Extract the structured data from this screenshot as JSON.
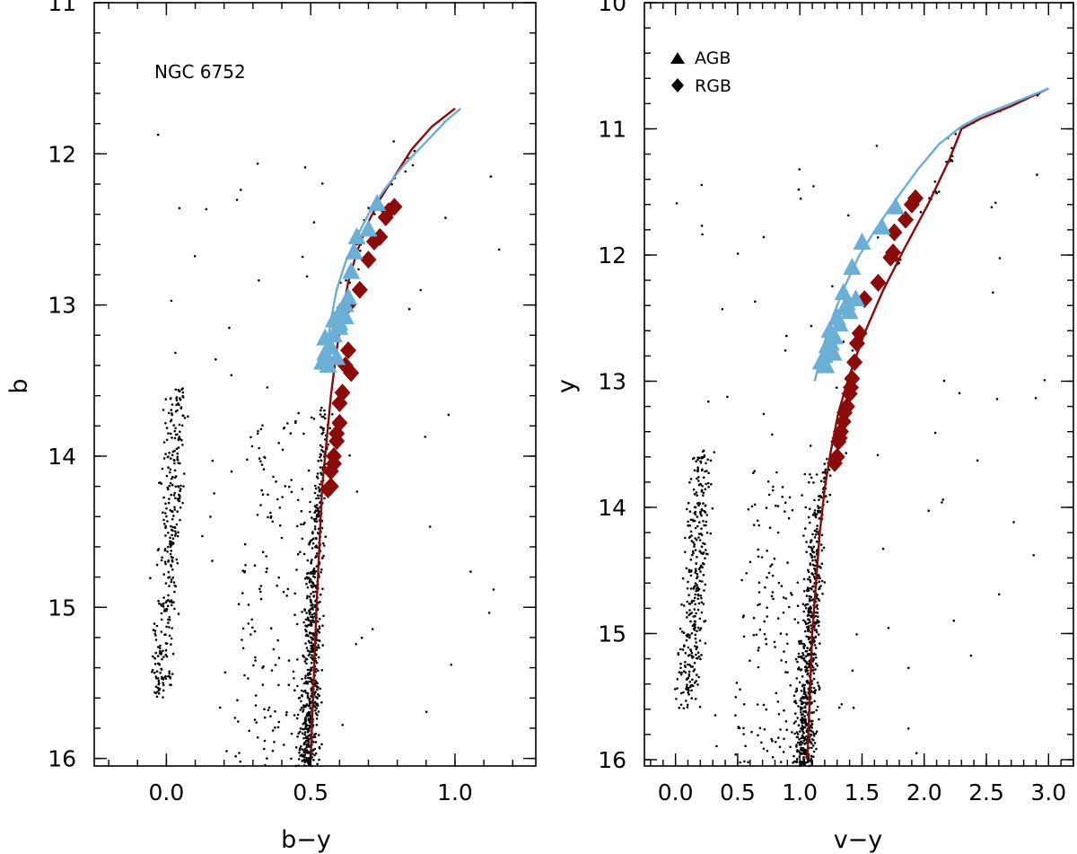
{
  "chart_data": [
    {
      "type": "scatter",
      "panel": "left",
      "xlabel": "b−y",
      "ylabel": "b",
      "xlim": [
        -0.25,
        1.28
      ],
      "ylim": [
        16.05,
        11.0
      ],
      "y_inverted": true,
      "xticks": [
        0.0,
        0.5,
        1.0
      ],
      "xtick_labels": [
        "0.0",
        "0.5",
        "1.0"
      ],
      "yticks": [
        11,
        12,
        13,
        14,
        15,
        16
      ],
      "ytick_labels": [
        "11",
        "12",
        "13",
        "14",
        "15",
        "16"
      ],
      "annotation": "NGC 6752",
      "field_stars_description": "main-sequence / giant branch field points",
      "agb_points": {
        "x": [
          0.73,
          0.7,
          0.66,
          0.64,
          0.65,
          0.6,
          0.62,
          0.58,
          0.6,
          0.63,
          0.57,
          0.55,
          0.59,
          0.56,
          0.54,
          0.55,
          0.58,
          0.62,
          0.6
        ],
        "y": [
          12.33,
          12.5,
          12.55,
          12.78,
          12.65,
          13.05,
          13.0,
          13.2,
          13.15,
          12.95,
          13.28,
          13.32,
          13.35,
          13.4,
          13.38,
          13.22,
          13.1,
          13.08,
          13.12
        ]
      },
      "rgb_points": {
        "x": [
          0.79,
          0.77,
          0.76,
          0.74,
          0.72,
          0.7,
          0.67,
          0.63,
          0.63,
          0.64,
          0.62,
          0.61,
          0.6,
          0.6,
          0.59,
          0.59,
          0.58,
          0.58,
          0.57,
          0.57,
          0.56
        ],
        "y": [
          12.35,
          12.38,
          12.42,
          12.55,
          12.58,
          12.7,
          12.9,
          13.0,
          13.3,
          13.45,
          13.4,
          13.58,
          13.65,
          13.78,
          13.85,
          13.9,
          14.0,
          14.05,
          14.1,
          14.2,
          14.22
        ]
      },
      "rgb_isochrone": {
        "x": [
          0.5,
          0.51,
          0.52,
          0.53,
          0.54,
          0.555,
          0.57,
          0.59,
          0.61,
          0.63,
          0.66,
          0.7,
          0.74,
          0.79,
          0.85,
          0.92,
          1.0
        ],
        "y": [
          16.0,
          15.5,
          15.0,
          14.6,
          14.2,
          13.9,
          13.6,
          13.3,
          13.05,
          12.85,
          12.65,
          12.45,
          12.3,
          12.15,
          11.97,
          11.82,
          11.7
        ]
      },
      "agb_isochrone": {
        "x": [
          0.55,
          0.555,
          0.57,
          0.59,
          0.62,
          0.66,
          0.7,
          0.75,
          0.82,
          0.9,
          0.97,
          1.02
        ],
        "y": [
          13.45,
          13.3,
          13.1,
          12.9,
          12.72,
          12.55,
          12.4,
          12.25,
          12.08,
          11.92,
          11.78,
          11.7
        ]
      }
    },
    {
      "type": "scatter",
      "panel": "right",
      "xlabel": "v−y",
      "ylabel": "y",
      "xlim": [
        -0.25,
        3.2
      ],
      "ylim": [
        16.05,
        10.0
      ],
      "y_inverted": true,
      "xticks": [
        0.0,
        0.5,
        1.0,
        1.5,
        2.0,
        2.5,
        3.0
      ],
      "xtick_labels": [
        "0.0",
        "0.5",
        "1.0",
        "1.5",
        "2.0",
        "2.5",
        "3.0"
      ],
      "yticks": [
        10,
        11,
        12,
        13,
        14,
        15,
        16
      ],
      "ytick_labels": [
        "10",
        "11",
        "12",
        "13",
        "14",
        "15",
        "16"
      ],
      "legend": [
        {
          "marker": "triangle",
          "label": "AGB"
        },
        {
          "marker": "diamond",
          "label": "RGB"
        }
      ],
      "agb_points": {
        "x": [
          1.77,
          1.66,
          1.5,
          1.42,
          1.45,
          1.38,
          1.4,
          1.35,
          1.32,
          1.28,
          1.25,
          1.22,
          1.2,
          1.17,
          1.24,
          1.3,
          1.36,
          1.27,
          1.21
        ],
        "y": [
          11.62,
          11.78,
          11.9,
          12.1,
          12.35,
          12.38,
          12.45,
          12.3,
          12.55,
          12.65,
          12.7,
          12.72,
          12.8,
          12.85,
          12.6,
          12.5,
          12.42,
          12.78,
          12.88
        ]
      },
      "rgb_points": {
        "x": [
          1.93,
          1.9,
          1.85,
          1.76,
          1.75,
          1.73,
          1.63,
          1.52,
          1.48,
          1.46,
          1.44,
          1.42,
          1.41,
          1.4,
          1.38,
          1.36,
          1.35,
          1.33,
          1.32,
          1.31,
          1.3,
          1.28
        ],
        "y": [
          11.55,
          11.6,
          11.72,
          11.82,
          11.98,
          12.02,
          12.22,
          12.35,
          12.62,
          12.7,
          12.85,
          12.98,
          13.05,
          13.1,
          13.2,
          13.25,
          13.32,
          13.4,
          13.45,
          13.48,
          13.6,
          13.65
        ]
      },
      "rgb_isochrone": {
        "x": [
          1.06,
          1.08,
          1.1,
          1.13,
          1.16,
          1.2,
          1.25,
          1.31,
          1.4,
          1.52,
          1.67,
          1.84,
          2.03,
          2.2,
          2.3,
          2.45,
          2.7,
          3.0
        ],
        "y": [
          16.0,
          15.5,
          15.0,
          14.6,
          14.2,
          13.85,
          13.55,
          13.25,
          12.95,
          12.62,
          12.28,
          11.95,
          11.6,
          11.25,
          11.0,
          10.92,
          10.82,
          10.68
        ]
      },
      "agb_isochrone": {
        "x": [
          1.12,
          1.18,
          1.26,
          1.36,
          1.48,
          1.62,
          1.78,
          1.95,
          2.12,
          2.3,
          2.45,
          2.7,
          3.0
        ],
        "y": [
          13.0,
          12.75,
          12.5,
          12.25,
          12.0,
          11.78,
          11.55,
          11.32,
          11.12,
          10.98,
          10.9,
          10.8,
          10.68
        ]
      }
    }
  ]
}
